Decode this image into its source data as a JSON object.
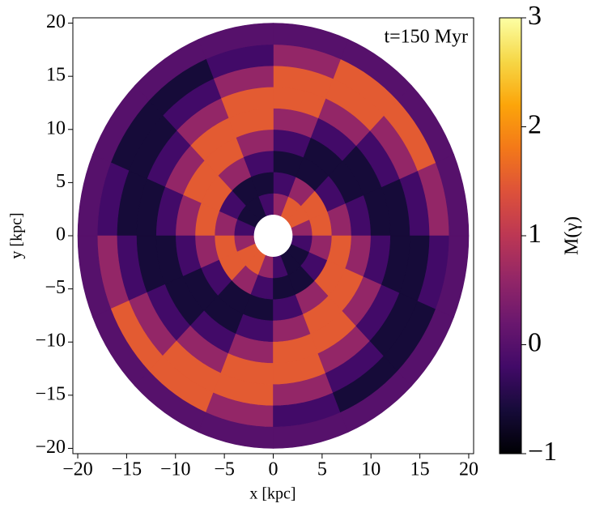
{
  "chart_data": {
    "type": "polar_heatmap",
    "annotation": "t=150 Myr",
    "xlabel": "x [kpc]",
    "ylabel": "y [kpc]",
    "xlim": [
      -20.5,
      20.5
    ],
    "ylim": [
      -20.5,
      20.5
    ],
    "xticks": [
      {
        "value": -20,
        "label": "−20"
      },
      {
        "value": -15,
        "label": "−15"
      },
      {
        "value": -10,
        "label": "−10"
      },
      {
        "value": -5,
        "label": "−5"
      },
      0,
      5,
      10,
      15,
      20
    ],
    "yticks": [
      {
        "value": -20,
        "label": "−20"
      },
      {
        "value": -15,
        "label": "−15"
      },
      {
        "value": -10,
        "label": "−10"
      },
      {
        "value": -5,
        "label": "−5"
      },
      0,
      5,
      10,
      15,
      20
    ],
    "r_edges": [
      2,
      4,
      6,
      8,
      10,
      12,
      14,
      16,
      18,
      20
    ],
    "theta_edges": [
      0,
      22.5,
      45,
      67.5,
      90,
      112.5,
      135,
      157.5,
      180,
      202.5,
      225,
      247.5,
      270,
      292.5,
      315,
      337.5,
      360
    ],
    "values": [
      [
        0.6,
        1.5,
        1.5,
        0.6,
        -0.2,
        -0.6,
        -0.6,
        -0.2,
        0.6,
        1.5,
        1.5,
        0.6,
        -0.2,
        -0.6,
        -0.6,
        -0.2
      ],
      [
        1.5,
        1.5,
        0.6,
        -0.2,
        -0.6,
        -0.6,
        -0.2,
        0.6,
        1.5,
        1.5,
        0.6,
        -0.2,
        -0.6,
        -0.6,
        -0.2,
        0.6
      ],
      [
        0.6,
        -0.2,
        -0.6,
        -0.6,
        -0.2,
        0.6,
        1.5,
        1.5,
        0.6,
        -0.2,
        -0.6,
        -0.6,
        -0.2,
        0.6,
        1.5,
        1.5
      ],
      [
        -0.2,
        -0.6,
        -0.6,
        -0.2,
        0.6,
        1.5,
        1.5,
        0.6,
        -0.2,
        -0.6,
        -0.6,
        -0.2,
        0.6,
        1.5,
        1.5,
        0.6
      ],
      [
        -0.6,
        -0.6,
        -0.2,
        0.6,
        1.5,
        1.5,
        0.6,
        -0.2,
        -0.6,
        -0.6,
        -0.2,
        0.6,
        1.5,
        1.5,
        0.6,
        -0.2
      ],
      [
        -0.6,
        -0.2,
        0.6,
        1.5,
        1.5,
        0.6,
        -0.2,
        -0.6,
        -0.6,
        -0.2,
        0.6,
        1.5,
        1.5,
        0.6,
        -0.2,
        -0.6
      ],
      [
        -0.2,
        0.6,
        1.5,
        1.5,
        0.6,
        -0.2,
        -0.6,
        -0.6,
        -0.2,
        0.6,
        1.5,
        1.5,
        0.6,
        -0.2,
        -0.6,
        -0.6
      ],
      [
        0.6,
        1.5,
        1.5,
        0.6,
        -0.2,
        -0.6,
        -0.6,
        -0.2,
        0.6,
        1.5,
        1.5,
        0.6,
        -0.2,
        -0.6,
        -0.6,
        -0.2
      ],
      [
        0,
        0,
        0,
        0,
        0,
        0,
        0,
        0,
        0,
        0,
        0,
        0,
        0,
        0,
        0,
        0
      ]
    ],
    "colorbar": {
      "label": "M(γ)",
      "colormap": "inferno",
      "lim": [
        -1,
        3
      ],
      "ticks": [
        {
          "value": -1,
          "label": "−1"
        },
        0,
        1,
        2,
        3
      ]
    }
  }
}
